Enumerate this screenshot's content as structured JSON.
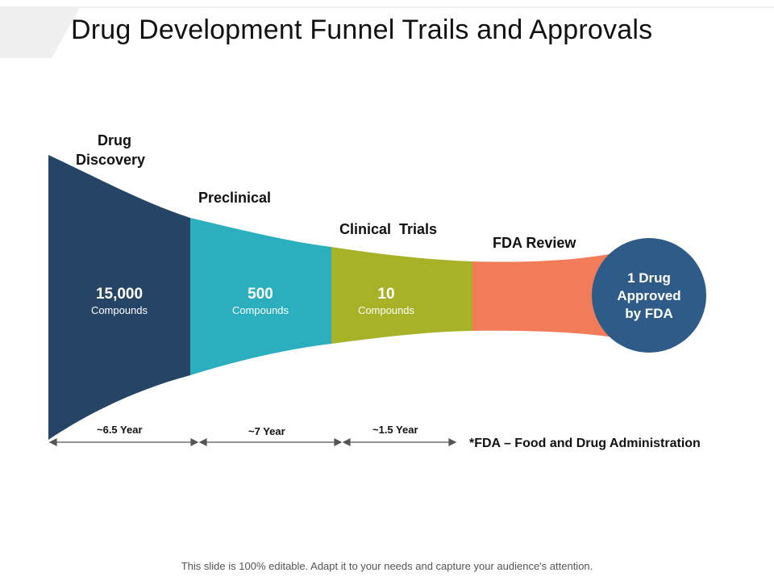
{
  "title": "Drug Development Funnel Trails and Approvals",
  "stages": [
    {
      "label_line1": "Drug",
      "label_line2": "Discovery",
      "value": "15,000",
      "unit": "Compounds",
      "color": "#264466"
    },
    {
      "label_line1": "Preclinical",
      "value": "500",
      "unit": "Compounds",
      "color": "#2bafbf"
    },
    {
      "label_line1": "Clinical  Trials",
      "value": "10",
      "unit": "Compounds",
      "color": "#a8b226"
    },
    {
      "label_line1": "FDA Review",
      "color": "#f27c5a"
    }
  ],
  "result": {
    "line1": "1 Drug",
    "line2": "Approved",
    "line3": "by FDA",
    "color": "#2e5b88"
  },
  "timeline": [
    {
      "label": "~6.5 Year"
    },
    {
      "label": "~7 Year"
    },
    {
      "label": "~1.5 Year"
    }
  ],
  "note": "*FDA – Food and Drug Administration",
  "footer": "This slide is 100% editable. Adapt it to your needs and capture your audience's attention.",
  "colors": {
    "tab_background": "#f0f0f0",
    "arrow": "#555555"
  }
}
